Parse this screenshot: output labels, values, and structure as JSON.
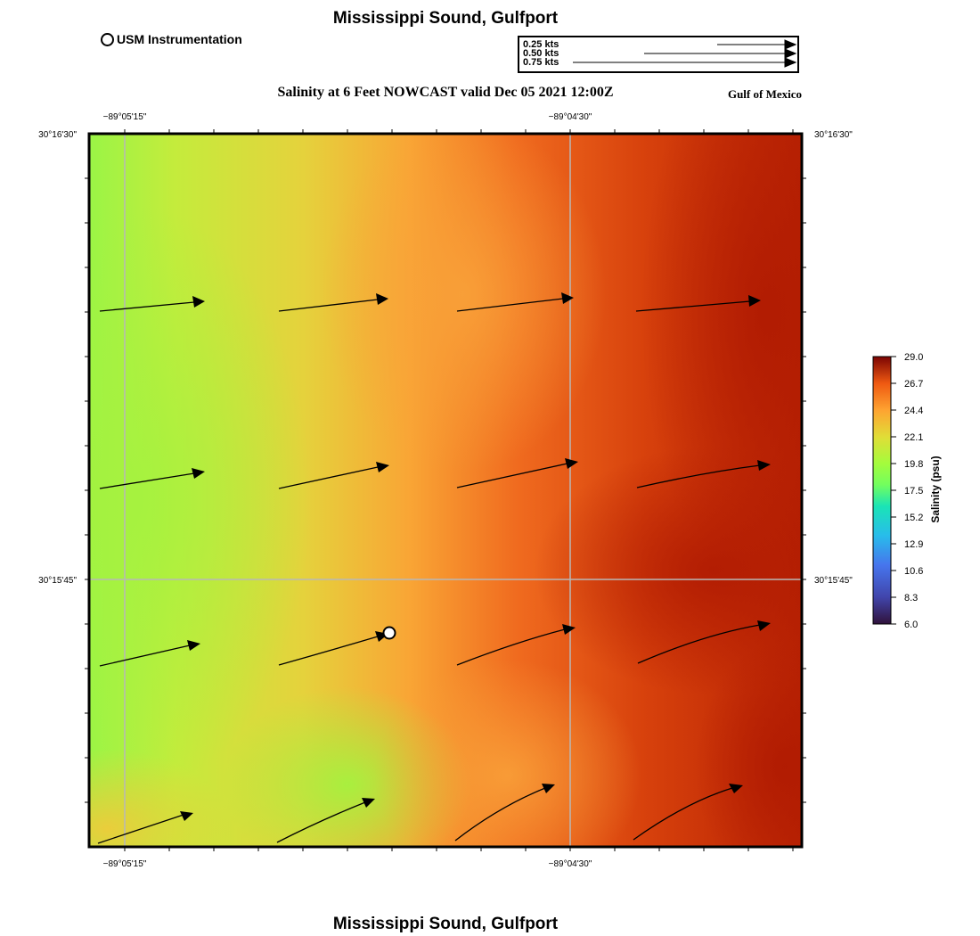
{
  "header": {
    "title": "Mississippi Sound, Gulfport",
    "instrument_label": "USM Instrumentation",
    "map_title": "Salinity at 6 Feet NOWCAST valid Dec 05 2021 12:00Z",
    "region_label": "Gulf of Mexico"
  },
  "footer": {
    "title": "Mississippi Sound, Gulfport"
  },
  "vector_legend": {
    "items": [
      {
        "label": "0.25 kts",
        "speed": 0.25
      },
      {
        "label": "0.50 kts",
        "speed": 0.5
      },
      {
        "label": "0.75 kts",
        "speed": 0.75
      }
    ]
  },
  "axes": {
    "lon_ticks": [
      "−89°05'15\"",
      "−89°04'30\""
    ],
    "lat_ticks": [
      "30°16'30\"",
      "30°15'45\""
    ]
  },
  "colorbar": {
    "title": "Salinity (psu)",
    "min": 6.0,
    "max": 29.0,
    "ticks": [
      "29.0",
      "26.7",
      "24.4",
      "22.1",
      "19.8",
      "17.5",
      "15.2",
      "12.9",
      "10.6",
      "8.3",
      "6.0"
    ]
  },
  "station": {
    "name": "USM Instrumentation"
  },
  "colors": {
    "low": "#30123b",
    "mid": "#a4fc3c",
    "high": "#7a0403",
    "grid": "#b8b8b8"
  }
}
